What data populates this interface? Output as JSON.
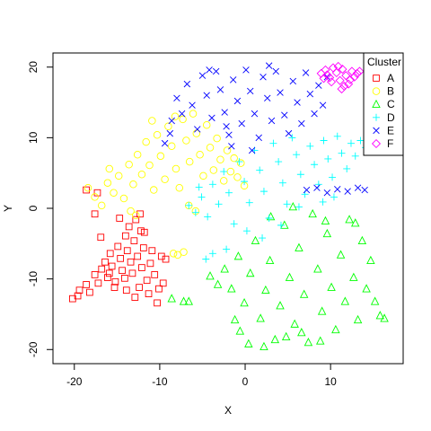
{
  "chart_data": {
    "type": "scatter",
    "xlabel": "X",
    "ylabel": "Y",
    "xlim": [
      -22.5,
      18.5
    ],
    "ylim": [
      -22.0,
      22.0
    ],
    "xticks": [
      -20,
      -10,
      0,
      10
    ],
    "yticks": [
      -20,
      -10,
      0,
      10,
      20
    ],
    "grid": false,
    "legend": {
      "title": "Cluster",
      "placement": "top-right"
    },
    "series": [
      {
        "name": "A",
        "color": "#FF0000",
        "marker": "square",
        "points": [
          [
            -20.2,
            -12.8
          ],
          [
            -19.4,
            -11.6
          ],
          [
            -19.6,
            -12.4
          ],
          [
            -18.6,
            -10.8
          ],
          [
            -18.2,
            -11.9
          ],
          [
            -17.6,
            -9.4
          ],
          [
            -17.2,
            -10.6
          ],
          [
            -16.8,
            -8.6
          ],
          [
            -16.4,
            -7.6
          ],
          [
            -16.1,
            -9.8
          ],
          [
            -15.8,
            -6.4
          ],
          [
            -15.6,
            -8.2
          ],
          [
            -15.2,
            -10.4
          ],
          [
            -14.9,
            -5.4
          ],
          [
            -14.6,
            -7.1
          ],
          [
            -14.4,
            -8.8
          ],
          [
            -14.1,
            -9.9
          ],
          [
            -14.0,
            -3.9
          ],
          [
            -13.8,
            -6.0
          ],
          [
            -13.6,
            -2.6
          ],
          [
            -13.4,
            -7.6
          ],
          [
            -13.2,
            -9.2
          ],
          [
            -13.0,
            -4.6
          ],
          [
            -12.8,
            -1.6
          ],
          [
            -12.6,
            -6.8
          ],
          [
            -12.4,
            -11.2
          ],
          [
            -12.3,
            -0.8
          ],
          [
            -12.1,
            -8.4
          ],
          [
            -11.9,
            -5.6
          ],
          [
            -11.8,
            -3.4
          ],
          [
            -11.5,
            -10.2
          ],
          [
            -11.3,
            -12.1
          ],
          [
            -11.1,
            -7.8
          ],
          [
            -10.9,
            -6.0
          ],
          [
            -10.6,
            -9.4
          ],
          [
            -10.3,
            -13.4
          ],
          [
            -10.1,
            -11.4
          ],
          [
            -9.8,
            -6.8
          ],
          [
            -9.6,
            -10.6
          ],
          [
            -9.3,
            -7.2
          ],
          [
            -15.3,
            -11.2
          ],
          [
            -16.9,
            -4.1
          ],
          [
            -18.6,
            2.6
          ],
          [
            -17.3,
            2.2
          ],
          [
            -17.6,
            -0.8
          ],
          [
            -12.9,
            -12.6
          ],
          [
            -14.7,
            -1.4
          ],
          [
            -13.9,
            -11.6
          ],
          [
            -12.2,
            -3.2
          ],
          [
            -15.9,
            -9.2
          ]
        ]
      },
      {
        "name": "B",
        "color": "#FFFF00",
        "marker": "circle",
        "points": [
          [
            -18.4,
            2.9
          ],
          [
            -17.6,
            1.6
          ],
          [
            -16.8,
            0.4
          ],
          [
            -16.1,
            3.6
          ],
          [
            -15.4,
            2.2
          ],
          [
            -14.8,
            4.6
          ],
          [
            -14.2,
            1.4
          ],
          [
            -13.6,
            6.2
          ],
          [
            -13.1,
            3.4
          ],
          [
            -12.6,
            7.6
          ],
          [
            -12.1,
            4.8
          ],
          [
            -11.6,
            9.4
          ],
          [
            -11.2,
            6.1
          ],
          [
            -10.7,
            2.6
          ],
          [
            -10.3,
            10.4
          ],
          [
            -9.9,
            7.4
          ],
          [
            -9.4,
            4.1
          ],
          [
            -9.0,
            11.6
          ],
          [
            -8.6,
            8.8
          ],
          [
            -8.1,
            5.6
          ],
          [
            -7.7,
            2.9
          ],
          [
            -7.3,
            12.6
          ],
          [
            -6.9,
            9.6
          ],
          [
            -6.5,
            6.6
          ],
          [
            -6.1,
            13.4
          ],
          [
            -5.7,
            10.6
          ],
          [
            -5.3,
            7.6
          ],
          [
            -4.9,
            4.6
          ],
          [
            -4.5,
            11.8
          ],
          [
            -4.1,
            8.6
          ],
          [
            -3.7,
            5.4
          ],
          [
            -3.3,
            9.9
          ],
          [
            -2.9,
            6.9
          ],
          [
            -2.5,
            3.9
          ],
          [
            -2.1,
            8.2
          ],
          [
            -1.7,
            5.2
          ],
          [
            -1.3,
            7.1
          ],
          [
            -0.9,
            4.4
          ],
          [
            -0.5,
            6.4
          ],
          [
            -0.1,
            3.2
          ],
          [
            -8.4,
            -6.4
          ],
          [
            -7.9,
            -6.6
          ],
          [
            -7.2,
            -6.2
          ],
          [
            -13.4,
            -0.4
          ],
          [
            -12.8,
            -1.0
          ],
          [
            -6.6,
            0.4
          ],
          [
            -5.8,
            -0.4
          ],
          [
            -15.9,
            5.6
          ],
          [
            -10.9,
            12.4
          ],
          [
            -8.2,
            13.0
          ]
        ]
      },
      {
        "name": "C",
        "color": "#00FF00",
        "marker": "triangle",
        "points": [
          [
            -8.6,
            -12.8
          ],
          [
            -7.2,
            -13.2
          ],
          [
            -4.1,
            -9.6
          ],
          [
            -3.2,
            -10.8
          ],
          [
            -2.4,
            -8.6
          ],
          [
            -1.6,
            -11.4
          ],
          [
            -0.8,
            -6.8
          ],
          [
            -0.1,
            -13.4
          ],
          [
            0.6,
            -9.2
          ],
          [
            1.2,
            -4.6
          ],
          [
            1.8,
            -15.6
          ],
          [
            2.4,
            -11.6
          ],
          [
            2.9,
            -7.4
          ],
          [
            3.5,
            -18.6
          ],
          [
            4.1,
            -13.8
          ],
          [
            4.6,
            -2.4
          ],
          [
            5.2,
            -9.8
          ],
          [
            5.8,
            -16.4
          ],
          [
            6.3,
            -5.6
          ],
          [
            6.9,
            -12.2
          ],
          [
            7.4,
            -19.0
          ],
          [
            7.9,
            -0.8
          ],
          [
            8.5,
            -8.6
          ],
          [
            9.0,
            -14.6
          ],
          [
            9.6,
            -3.6
          ],
          [
            10.1,
            -11.2
          ],
          [
            10.6,
            -17.2
          ],
          [
            11.2,
            -6.6
          ],
          [
            11.7,
            -13.2
          ],
          [
            12.2,
            -1.6
          ],
          [
            12.7,
            -9.8
          ],
          [
            13.2,
            -15.8
          ],
          [
            13.7,
            -4.6
          ],
          [
            14.2,
            -11.4
          ],
          [
            14.7,
            -7.4
          ],
          [
            15.2,
            -13.2
          ],
          [
            15.8,
            -15.2
          ],
          [
            16.3,
            -15.6
          ],
          [
            0.4,
            -19.2
          ],
          [
            2.2,
            -19.6
          ],
          [
            4.8,
            -18.2
          ],
          [
            6.6,
            -17.6
          ],
          [
            8.8,
            -18.8
          ],
          [
            -0.6,
            -17.4
          ],
          [
            3.0,
            -1.2
          ],
          [
            5.6,
            0.2
          ],
          [
            9.4,
            -1.8
          ],
          [
            -6.6,
            -13.2
          ],
          [
            12.9,
            -2.1
          ],
          [
            -1.2,
            -15.8
          ]
        ]
      },
      {
        "name": "D",
        "color": "#00FFFF",
        "marker": "plus",
        "points": [
          [
            -6.6,
            0.4
          ],
          [
            -5.8,
            -0.6
          ],
          [
            -5.1,
            1.6
          ],
          [
            -4.4,
            -1.2
          ],
          [
            -3.8,
            3.4
          ],
          [
            -3.1,
            0.6
          ],
          [
            -2.5,
            5.2
          ],
          [
            -1.9,
            2.2
          ],
          [
            -1.3,
            -2.2
          ],
          [
            -0.7,
            6.6
          ],
          [
            -0.1,
            3.8
          ],
          [
            0.5,
            0.8
          ],
          [
            1.1,
            8.2
          ],
          [
            1.7,
            5.4
          ],
          [
            2.2,
            2.4
          ],
          [
            2.8,
            -1.4
          ],
          [
            3.3,
            9.2
          ],
          [
            3.9,
            6.6
          ],
          [
            4.4,
            3.6
          ],
          [
            4.9,
            0.6
          ],
          [
            5.5,
            10.0
          ],
          [
            6.0,
            7.6
          ],
          [
            6.5,
            4.8
          ],
          [
            7.0,
            2.0
          ],
          [
            7.6,
            8.8
          ],
          [
            8.1,
            6.2
          ],
          [
            8.6,
            3.4
          ],
          [
            9.2,
            9.6
          ],
          [
            9.7,
            7.0
          ],
          [
            10.2,
            4.4
          ],
          [
            10.8,
            10.2
          ],
          [
            11.3,
            7.8
          ],
          [
            11.9,
            5.6
          ],
          [
            12.4,
            9.2
          ],
          [
            12.9,
            7.4
          ],
          [
            13.5,
            9.6
          ],
          [
            14.1,
            8.6
          ],
          [
            14.6,
            10.0
          ],
          [
            15.1,
            9.4
          ],
          [
            15.6,
            10.2
          ],
          [
            -4.6,
            -7.2
          ],
          [
            -3.8,
            -6.4
          ],
          [
            -2.2,
            -5.8
          ],
          [
            0.2,
            -3.2
          ],
          [
            2.0,
            -4.2
          ],
          [
            -5.4,
            3.0
          ],
          [
            6.3,
            0.2
          ],
          [
            9.1,
            0.9
          ],
          [
            4.2,
            -2.4
          ],
          [
            10.4,
            1.6
          ]
        ]
      },
      {
        "name": "E",
        "color": "#0000FF",
        "marker": "cross",
        "points": [
          [
            -8.6,
            12.4
          ],
          [
            -8.0,
            15.6
          ],
          [
            -7.4,
            13.4
          ],
          [
            -6.8,
            17.6
          ],
          [
            -6.2,
            14.6
          ],
          [
            -5.6,
            11.2
          ],
          [
            -5.0,
            18.8
          ],
          [
            -4.5,
            16.0
          ],
          [
            -3.9,
            12.8
          ],
          [
            -3.4,
            19.4
          ],
          [
            -2.9,
            16.8
          ],
          [
            -2.4,
            13.6
          ],
          [
            -1.9,
            10.4
          ],
          [
            -1.4,
            18.2
          ],
          [
            -0.9,
            15.2
          ],
          [
            -0.4,
            12.0
          ],
          [
            0.1,
            19.6
          ],
          [
            0.6,
            16.6
          ],
          [
            1.1,
            13.4
          ],
          [
            1.6,
            10.0
          ],
          [
            2.1,
            18.6
          ],
          [
            2.6,
            15.6
          ],
          [
            3.1,
            12.4
          ],
          [
            3.6,
            19.4
          ],
          [
            4.1,
            16.4
          ],
          [
            4.6,
            13.2
          ],
          [
            5.1,
            10.6
          ],
          [
            5.6,
            18.0
          ],
          [
            6.1,
            15.0
          ],
          [
            6.6,
            12.0
          ],
          [
            7.1,
            19.2
          ],
          [
            7.6,
            16.2
          ],
          [
            8.1,
            13.4
          ],
          [
            8.6,
            17.4
          ],
          [
            9.1,
            14.6
          ],
          [
            9.6,
            18.6
          ],
          [
            -9.4,
            9.2
          ],
          [
            -8.8,
            10.6
          ],
          [
            -2.2,
            11.6
          ],
          [
            -1.6,
            8.8
          ],
          [
            0.8,
            8.2
          ],
          [
            7.2,
            2.6
          ],
          [
            8.4,
            2.9
          ],
          [
            9.6,
            2.2
          ],
          [
            10.8,
            2.7
          ],
          [
            12.0,
            2.4
          ],
          [
            13.2,
            2.9
          ],
          [
            14.0,
            2.6
          ],
          [
            -4.2,
            19.6
          ],
          [
            2.8,
            20.2
          ]
        ]
      },
      {
        "name": "F",
        "color": "#FF00FF",
        "marker": "diamond",
        "points": [
          [
            8.9,
            19.1
          ],
          [
            9.4,
            19.6
          ],
          [
            9.9,
            18.5
          ],
          [
            10.3,
            19.9
          ],
          [
            10.7,
            19.2
          ],
          [
            11.1,
            18.1
          ],
          [
            11.4,
            19.7
          ],
          [
            11.8,
            18.8
          ],
          [
            12.1,
            17.6
          ],
          [
            12.5,
            19.4
          ],
          [
            12.8,
            18.6
          ],
          [
            13.1,
            19.1
          ],
          [
            10.1,
            17.9
          ],
          [
            11.6,
            17.3
          ],
          [
            9.6,
            18.9
          ],
          [
            12.3,
            18.2
          ],
          [
            10.9,
            20.1
          ],
          [
            11.3,
            16.9
          ],
          [
            13.4,
            19.4
          ],
          [
            9.2,
            18.4
          ]
        ]
      }
    ]
  }
}
